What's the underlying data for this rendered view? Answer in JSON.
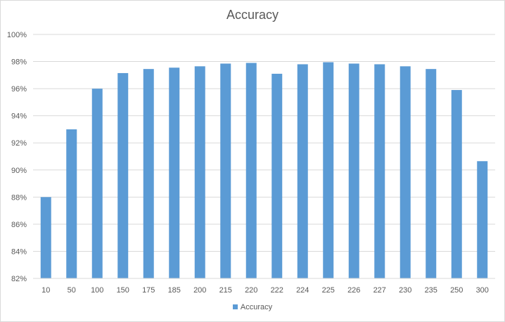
{
  "chart_data": {
    "type": "bar",
    "title": "Accuracy",
    "xlabel": "",
    "ylabel": "",
    "categories": [
      "10",
      "50",
      "100",
      "150",
      "175",
      "185",
      "200",
      "215",
      "220",
      "222",
      "224",
      "225",
      "226",
      "227",
      "230",
      "235",
      "250",
      "300"
    ],
    "series": [
      {
        "name": "Accuracy",
        "values": [
          88.0,
          93.0,
          96.0,
          97.15,
          97.45,
          97.55,
          97.65,
          97.85,
          97.9,
          97.1,
          97.8,
          97.95,
          97.85,
          97.8,
          97.65,
          97.45,
          95.9,
          90.65
        ],
        "color": "#5b9bd5"
      }
    ],
    "ylim": [
      82,
      100
    ],
    "yticks": [
      82,
      84,
      86,
      88,
      90,
      92,
      94,
      96,
      98,
      100
    ],
    "ytick_labels": [
      "82%",
      "84%",
      "86%",
      "88%",
      "90%",
      "92%",
      "94%",
      "96%",
      "98%",
      "100%"
    ],
    "grid": true,
    "legend_position": "bottom"
  }
}
